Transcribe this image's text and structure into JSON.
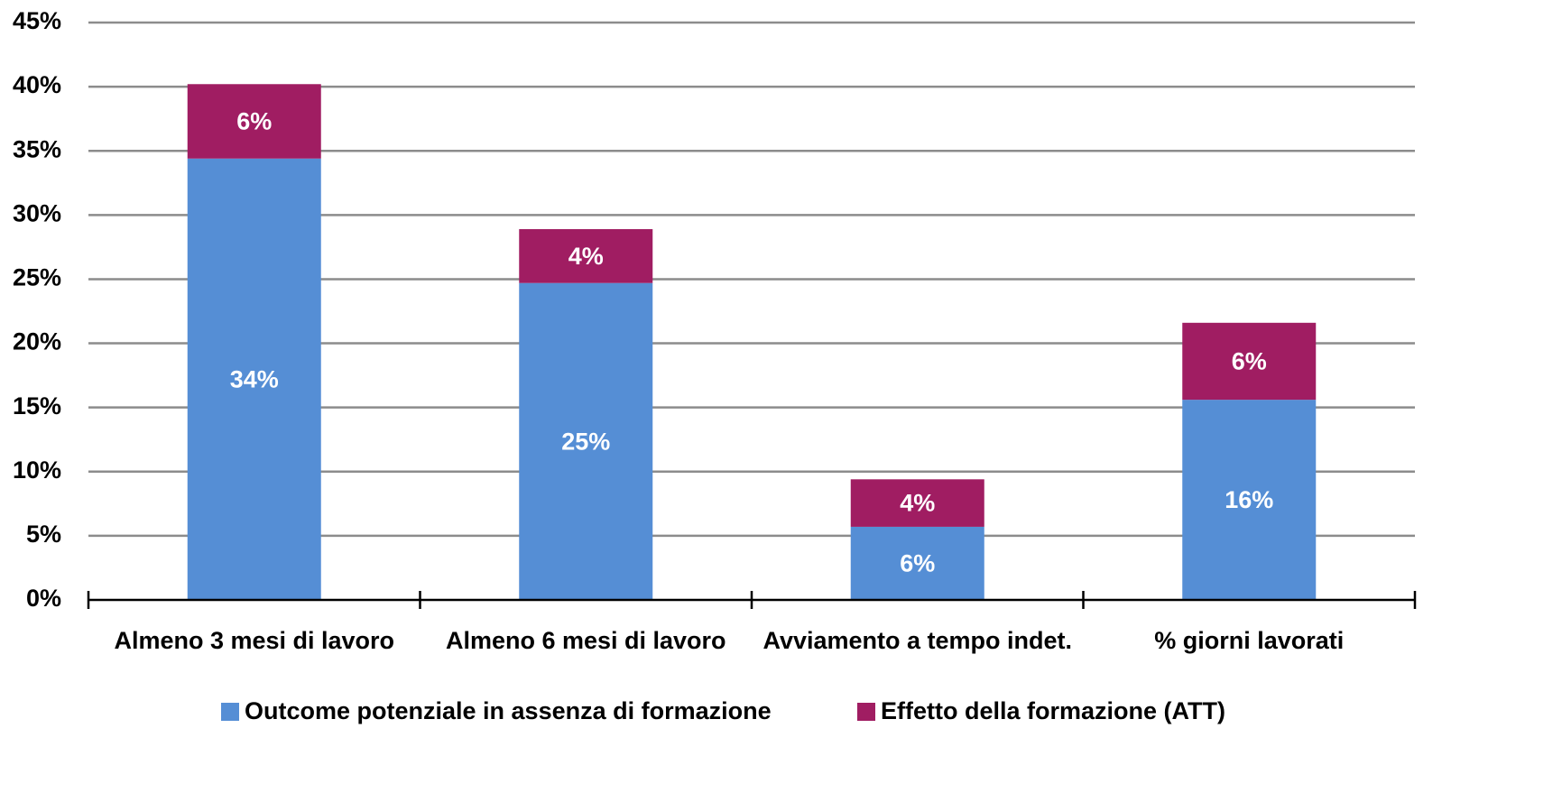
{
  "chart_data": {
    "type": "stacked_bar",
    "categories": [
      "Almeno 3 mesi di lavoro",
      "Almeno 6 mesi di lavoro",
      "Avviamento a tempo indet.",
      "% giorni lavorati"
    ],
    "series": [
      {
        "name": "Outcome potenziale in assenza di formazione",
        "color": "#558ed5",
        "values": [
          34.4,
          24.7,
          5.7,
          15.6
        ],
        "value_labels": [
          "34%",
          "25%",
          "6%",
          "16%"
        ]
      },
      {
        "name": "Effetto della formazione (ATT)",
        "color": "#a01d62",
        "values": [
          5.8,
          4.2,
          3.7,
          6.0
        ],
        "value_labels": [
          "6%",
          "4%",
          "4%",
          "6%"
        ]
      }
    ],
    "ylim": [
      0,
      45
    ],
    "yticks": [
      {
        "value": 0,
        "label": "0%"
      },
      {
        "value": 5,
        "label": "5%"
      },
      {
        "value": 10,
        "label": "10%"
      },
      {
        "value": 15,
        "label": "15%"
      },
      {
        "value": 20,
        "label": "20%"
      },
      {
        "value": 25,
        "label": "25%"
      },
      {
        "value": 30,
        "label": "30%"
      },
      {
        "value": 35,
        "label": "35%"
      },
      {
        "value": 40,
        "label": "40%"
      },
      {
        "value": 45,
        "label": "45%"
      }
    ],
    "grid": true,
    "legend": "bottom"
  }
}
